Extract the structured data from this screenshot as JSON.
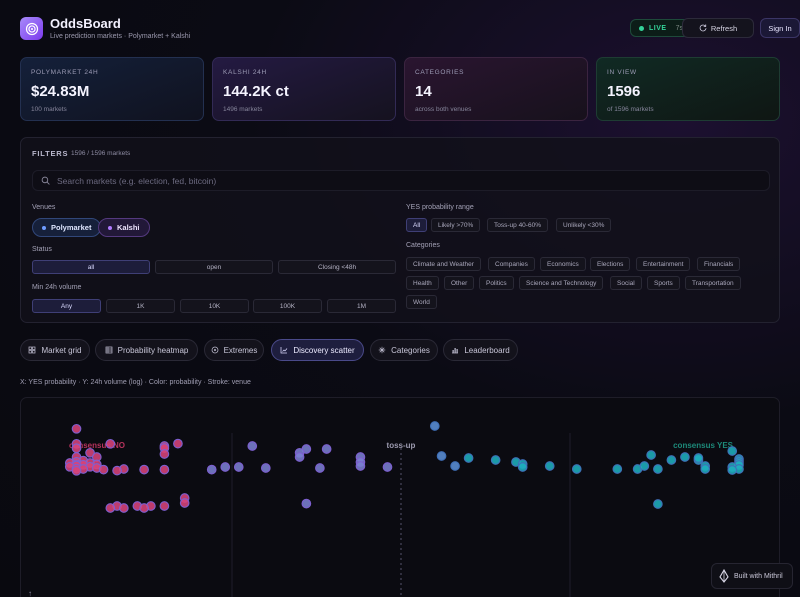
{
  "app": {
    "title": "OddsBoard",
    "subtitle": "Live prediction markets · Polymarket + Kalshi",
    "logo_icon": "target-icon"
  },
  "header": {
    "live_label": "LIVE",
    "live_age": "7s",
    "refresh_label": "Refresh",
    "signin_label": "Sign In"
  },
  "stats": [
    {
      "label": "POLYMARKET 24H",
      "value": "$24.83M",
      "sub": "100 markets"
    },
    {
      "label": "KALSHI 24H",
      "value": "144.2K ct",
      "sub": "1496 markets"
    },
    {
      "label": "CATEGORIES",
      "value": "14",
      "sub": "across both venues"
    },
    {
      "label": "IN VIEW",
      "value": "1596",
      "sub": "of 1596 markets"
    }
  ],
  "filters": {
    "title": "FILTERS",
    "count": "1596 / 1596 markets",
    "search_placeholder": "Search markets (e.g. election, fed, bitcoin)",
    "venues_label": "Venues",
    "venues": [
      {
        "label": "Polymarket",
        "color": "#6f9cff"
      },
      {
        "label": "Kalshi",
        "color": "#b07cff"
      }
    ],
    "status_label": "Status",
    "status_options": [
      "all",
      "open",
      "Closing <48h"
    ],
    "status_selected": "all",
    "volume_label": "Min 24h volume",
    "volume_options": [
      "Any",
      "1K",
      "10K",
      "100K",
      "1M"
    ],
    "volume_selected": "Any",
    "prob_label": "YES probability range",
    "prob_options": [
      "All",
      "Likely >70%",
      "Toss-up 40-60%",
      "Unlikely <30%"
    ],
    "prob_selected": "All",
    "categories_label": "Categories",
    "categories": [
      "Climate and Weather",
      "Companies",
      "Economics",
      "Elections",
      "Entertainment",
      "Financials",
      "Health",
      "Other",
      "Politics",
      "Science and Technology",
      "Social",
      "Sports",
      "Transportation",
      "World"
    ]
  },
  "tabs": [
    {
      "label": "Market grid",
      "icon": "grid-icon",
      "active": false
    },
    {
      "label": "Probability heatmap",
      "icon": "table-icon",
      "active": false
    },
    {
      "label": "Extremes",
      "icon": "gauge-icon",
      "active": false
    },
    {
      "label": "Discovery scatter",
      "icon": "scatter-icon",
      "active": true
    },
    {
      "label": "Categories",
      "icon": "sparkle-icon",
      "active": false
    },
    {
      "label": "Leaderboard",
      "icon": "bar-chart-icon",
      "active": false
    }
  ],
  "caption": "X: YES probability · Y: 24h volume (log) · Color: probability · Stroke: venue",
  "footer_badge": "Built with Mithril",
  "chart_data": {
    "type": "scatter",
    "region_labels": [
      "consensus NO",
      "toss-up",
      "consensus YES"
    ],
    "x_axis": "YES probability",
    "y_axis": "24h volume (log)",
    "xlim": [
      0,
      1
    ],
    "colors": {
      "no": "#d7437a",
      "mid": "#7a7fd0",
      "yes": "#1eaebd"
    },
    "points": [
      {
        "p": 0.02,
        "v": 0.946
      },
      {
        "p": 0.02,
        "v": 0.871
      },
      {
        "p": 0.07,
        "v": 0.871
      },
      {
        "p": 0.02,
        "v": 0.849
      },
      {
        "p": 0.04,
        "v": 0.826
      },
      {
        "p": 0.02,
        "v": 0.805
      },
      {
        "p": 0.05,
        "v": 0.805
      },
      {
        "p": 0.03,
        "v": 0.787
      },
      {
        "p": 0.02,
        "v": 0.781
      },
      {
        "p": 0.04,
        "v": 0.775
      },
      {
        "p": 0.01,
        "v": 0.775
      },
      {
        "p": 0.02,
        "v": 0.768
      },
      {
        "p": 0.05,
        "v": 0.768
      },
      {
        "p": 0.03,
        "v": 0.766
      },
      {
        "p": 0.02,
        "v": 0.762
      },
      {
        "p": 0.01,
        "v": 0.756
      },
      {
        "p": 0.04,
        "v": 0.756
      },
      {
        "p": 0.05,
        "v": 0.75
      },
      {
        "p": 0.02,
        "v": 0.747
      },
      {
        "p": 0.03,
        "v": 0.745
      },
      {
        "p": 0.09,
        "v": 0.745
      },
      {
        "p": 0.06,
        "v": 0.742
      },
      {
        "p": 0.15,
        "v": 0.742
      },
      {
        "p": 0.22,
        "v": 0.742
      },
      {
        "p": 0.02,
        "v": 0.736
      },
      {
        "p": 0.08,
        "v": 0.737
      },
      {
        "p": 0.15,
        "v": 0.86
      },
      {
        "p": 0.15,
        "v": 0.85
      },
      {
        "p": 0.15,
        "v": 0.82
      },
      {
        "p": 0.17,
        "v": 0.872
      },
      {
        "p": 0.12,
        "v": 0.742
      },
      {
        "p": 0.18,
        "v": 0.6
      },
      {
        "p": 0.18,
        "v": 0.575
      },
      {
        "p": 0.08,
        "v": 0.56
      },
      {
        "p": 0.11,
        "v": 0.56
      },
      {
        "p": 0.13,
        "v": 0.56
      },
      {
        "p": 0.07,
        "v": 0.55
      },
      {
        "p": 0.09,
        "v": 0.55
      },
      {
        "p": 0.12,
        "v": 0.55
      },
      {
        "p": 0.15,
        "v": 0.56
      },
      {
        "p": 0.55,
        "v": 0.96
      },
      {
        "p": 0.28,
        "v": 0.86
      },
      {
        "p": 0.36,
        "v": 0.845
      },
      {
        "p": 0.35,
        "v": 0.826
      },
      {
        "p": 0.39,
        "v": 0.845
      },
      {
        "p": 0.35,
        "v": 0.805
      },
      {
        "p": 0.44,
        "v": 0.805
      },
      {
        "p": 0.44,
        "v": 0.78
      },
      {
        "p": 0.44,
        "v": 0.76
      },
      {
        "p": 0.48,
        "v": 0.755
      },
      {
        "p": 0.24,
        "v": 0.755
      },
      {
        "p": 0.26,
        "v": 0.755
      },
      {
        "p": 0.3,
        "v": 0.75
      },
      {
        "p": 0.38,
        "v": 0.75
      },
      {
        "p": 0.36,
        "v": 0.572
      },
      {
        "p": 0.56,
        "v": 0.81
      },
      {
        "p": 0.6,
        "v": 0.8
      },
      {
        "p": 0.64,
        "v": 0.79
      },
      {
        "p": 0.67,
        "v": 0.78
      },
      {
        "p": 0.68,
        "v": 0.77
      },
      {
        "p": 0.72,
        "v": 0.76
      },
      {
        "p": 0.76,
        "v": 0.745
      },
      {
        "p": 0.82,
        "v": 0.745
      },
      {
        "p": 0.58,
        "v": 0.76
      },
      {
        "p": 0.68,
        "v": 0.755
      },
      {
        "p": 0.87,
        "v": 0.815
      },
      {
        "p": 0.85,
        "v": 0.745
      },
      {
        "p": 0.9,
        "v": 0.79
      },
      {
        "p": 0.92,
        "v": 0.805
      },
      {
        "p": 0.94,
        "v": 0.79
      },
      {
        "p": 0.94,
        "v": 0.8
      },
      {
        "p": 0.95,
        "v": 0.76
      },
      {
        "p": 0.99,
        "v": 0.835
      },
      {
        "p": 1.0,
        "v": 0.795
      },
      {
        "p": 1.0,
        "v": 0.785
      },
      {
        "p": 1.0,
        "v": 0.775
      },
      {
        "p": 1.0,
        "v": 0.765
      },
      {
        "p": 0.99,
        "v": 0.755
      },
      {
        "p": 1.0,
        "v": 0.745
      },
      {
        "p": 0.99,
        "v": 0.74
      },
      {
        "p": 0.95,
        "v": 0.745
      },
      {
        "p": 0.88,
        "v": 0.745
      },
      {
        "p": 0.86,
        "v": 0.76
      },
      {
        "p": 0.88,
        "v": 0.57
      }
    ]
  }
}
